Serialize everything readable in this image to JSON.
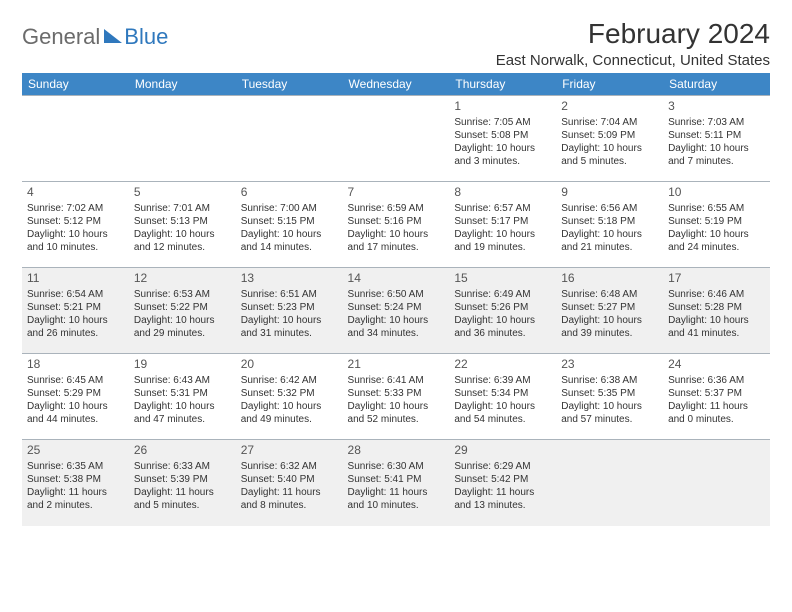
{
  "logo": {
    "part1": "General",
    "part2": "Blue"
  },
  "title": "February 2024",
  "location": "East Norwalk, Connecticut, United States",
  "columns": [
    "Sunday",
    "Monday",
    "Tuesday",
    "Wednesday",
    "Thursday",
    "Friday",
    "Saturday"
  ],
  "header_bg": "#3d86c6",
  "header_fg": "#ffffff",
  "shaded_bg": "#f0f0f0",
  "border_color": "#aab3bb",
  "weeks": [
    [
      {
        "empty": true
      },
      {
        "empty": true
      },
      {
        "empty": true
      },
      {
        "empty": true
      },
      {
        "day": "1",
        "sunrise": "Sunrise: 7:05 AM",
        "sunset": "Sunset: 5:08 PM",
        "daylight": "Daylight: 10 hours and 3 minutes."
      },
      {
        "day": "2",
        "sunrise": "Sunrise: 7:04 AM",
        "sunset": "Sunset: 5:09 PM",
        "daylight": "Daylight: 10 hours and 5 minutes."
      },
      {
        "day": "3",
        "sunrise": "Sunrise: 7:03 AM",
        "sunset": "Sunset: 5:11 PM",
        "daylight": "Daylight: 10 hours and 7 minutes."
      }
    ],
    [
      {
        "day": "4",
        "sunrise": "Sunrise: 7:02 AM",
        "sunset": "Sunset: 5:12 PM",
        "daylight": "Daylight: 10 hours and 10 minutes."
      },
      {
        "day": "5",
        "sunrise": "Sunrise: 7:01 AM",
        "sunset": "Sunset: 5:13 PM",
        "daylight": "Daylight: 10 hours and 12 minutes."
      },
      {
        "day": "6",
        "sunrise": "Sunrise: 7:00 AM",
        "sunset": "Sunset: 5:15 PM",
        "daylight": "Daylight: 10 hours and 14 minutes."
      },
      {
        "day": "7",
        "sunrise": "Sunrise: 6:59 AM",
        "sunset": "Sunset: 5:16 PM",
        "daylight": "Daylight: 10 hours and 17 minutes."
      },
      {
        "day": "8",
        "sunrise": "Sunrise: 6:57 AM",
        "sunset": "Sunset: 5:17 PM",
        "daylight": "Daylight: 10 hours and 19 minutes."
      },
      {
        "day": "9",
        "sunrise": "Sunrise: 6:56 AM",
        "sunset": "Sunset: 5:18 PM",
        "daylight": "Daylight: 10 hours and 21 minutes."
      },
      {
        "day": "10",
        "sunrise": "Sunrise: 6:55 AM",
        "sunset": "Sunset: 5:19 PM",
        "daylight": "Daylight: 10 hours and 24 minutes."
      }
    ],
    [
      {
        "day": "11",
        "shaded": true,
        "sunrise": "Sunrise: 6:54 AM",
        "sunset": "Sunset: 5:21 PM",
        "daylight": "Daylight: 10 hours and 26 minutes."
      },
      {
        "day": "12",
        "shaded": true,
        "sunrise": "Sunrise: 6:53 AM",
        "sunset": "Sunset: 5:22 PM",
        "daylight": "Daylight: 10 hours and 29 minutes."
      },
      {
        "day": "13",
        "shaded": true,
        "sunrise": "Sunrise: 6:51 AM",
        "sunset": "Sunset: 5:23 PM",
        "daylight": "Daylight: 10 hours and 31 minutes."
      },
      {
        "day": "14",
        "shaded": true,
        "sunrise": "Sunrise: 6:50 AM",
        "sunset": "Sunset: 5:24 PM",
        "daylight": "Daylight: 10 hours and 34 minutes."
      },
      {
        "day": "15",
        "shaded": true,
        "sunrise": "Sunrise: 6:49 AM",
        "sunset": "Sunset: 5:26 PM",
        "daylight": "Daylight: 10 hours and 36 minutes."
      },
      {
        "day": "16",
        "shaded": true,
        "sunrise": "Sunrise: 6:48 AM",
        "sunset": "Sunset: 5:27 PM",
        "daylight": "Daylight: 10 hours and 39 minutes."
      },
      {
        "day": "17",
        "shaded": true,
        "sunrise": "Sunrise: 6:46 AM",
        "sunset": "Sunset: 5:28 PM",
        "daylight": "Daylight: 10 hours and 41 minutes."
      }
    ],
    [
      {
        "day": "18",
        "sunrise": "Sunrise: 6:45 AM",
        "sunset": "Sunset: 5:29 PM",
        "daylight": "Daylight: 10 hours and 44 minutes."
      },
      {
        "day": "19",
        "sunrise": "Sunrise: 6:43 AM",
        "sunset": "Sunset: 5:31 PM",
        "daylight": "Daylight: 10 hours and 47 minutes."
      },
      {
        "day": "20",
        "sunrise": "Sunrise: 6:42 AM",
        "sunset": "Sunset: 5:32 PM",
        "daylight": "Daylight: 10 hours and 49 minutes."
      },
      {
        "day": "21",
        "sunrise": "Sunrise: 6:41 AM",
        "sunset": "Sunset: 5:33 PM",
        "daylight": "Daylight: 10 hours and 52 minutes."
      },
      {
        "day": "22",
        "sunrise": "Sunrise: 6:39 AM",
        "sunset": "Sunset: 5:34 PM",
        "daylight": "Daylight: 10 hours and 54 minutes."
      },
      {
        "day": "23",
        "sunrise": "Sunrise: 6:38 AM",
        "sunset": "Sunset: 5:35 PM",
        "daylight": "Daylight: 10 hours and 57 minutes."
      },
      {
        "day": "24",
        "sunrise": "Sunrise: 6:36 AM",
        "sunset": "Sunset: 5:37 PM",
        "daylight": "Daylight: 11 hours and 0 minutes."
      }
    ],
    [
      {
        "day": "25",
        "shaded": true,
        "sunrise": "Sunrise: 6:35 AM",
        "sunset": "Sunset: 5:38 PM",
        "daylight": "Daylight: 11 hours and 2 minutes."
      },
      {
        "day": "26",
        "shaded": true,
        "sunrise": "Sunrise: 6:33 AM",
        "sunset": "Sunset: 5:39 PM",
        "daylight": "Daylight: 11 hours and 5 minutes."
      },
      {
        "day": "27",
        "shaded": true,
        "sunrise": "Sunrise: 6:32 AM",
        "sunset": "Sunset: 5:40 PM",
        "daylight": "Daylight: 11 hours and 8 minutes."
      },
      {
        "day": "28",
        "shaded": true,
        "sunrise": "Sunrise: 6:30 AM",
        "sunset": "Sunset: 5:41 PM",
        "daylight": "Daylight: 11 hours and 10 minutes."
      },
      {
        "day": "29",
        "shaded": true,
        "sunrise": "Sunrise: 6:29 AM",
        "sunset": "Sunset: 5:42 PM",
        "daylight": "Daylight: 11 hours and 13 minutes."
      },
      {
        "empty": true,
        "shaded": true
      },
      {
        "empty": true,
        "shaded": true
      }
    ]
  ]
}
